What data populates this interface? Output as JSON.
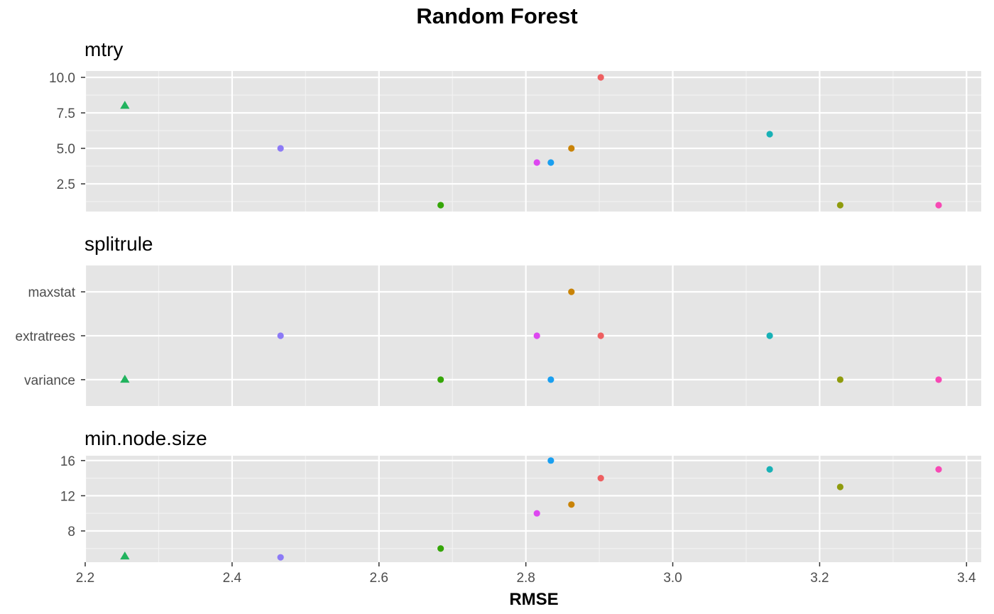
{
  "chart_data": {
    "type": "scatter",
    "title": "Random Forest",
    "xlabel": "RMSE",
    "x_ticks": [
      2.2,
      2.4,
      2.6,
      2.8,
      3.0,
      3.2,
      3.4
    ],
    "x_tick_labels": [
      "2.2",
      "2.4",
      "2.6",
      "2.8",
      "3.0",
      "3.2",
      "3.4"
    ],
    "xlim": [
      2.2,
      3.42
    ],
    "grid": true,
    "best_marker": "triangle",
    "panels": [
      {
        "name": "mtry",
        "y_ticks": [
          2.5,
          5.0,
          7.5,
          10.0
        ],
        "y_tick_labels": [
          "2.5",
          "5.0",
          "7.5",
          "10.0"
        ],
        "ylim": [
          0.55,
          10.45
        ],
        "points": [
          {
            "x": 2.254,
            "y": 8,
            "color": "#21B35E",
            "marker": "triangle"
          },
          {
            "x": 2.466,
            "y": 5,
            "color": "#8C7AF6",
            "marker": "circle"
          },
          {
            "x": 2.684,
            "y": 1,
            "color": "#35A608",
            "marker": "circle"
          },
          {
            "x": 2.815,
            "y": 4,
            "color": "#DD47F0",
            "marker": "circle"
          },
          {
            "x": 2.834,
            "y": 4,
            "color": "#1A9FF0",
            "marker": "circle"
          },
          {
            "x": 2.862,
            "y": 5,
            "color": "#C98307",
            "marker": "circle"
          },
          {
            "x": 2.902,
            "y": 10,
            "color": "#EE5F61",
            "marker": "circle"
          },
          {
            "x": 3.132,
            "y": 6,
            "color": "#18B1B6",
            "marker": "circle"
          },
          {
            "x": 3.228,
            "y": 1,
            "color": "#8F9B0D",
            "marker": "circle"
          },
          {
            "x": 3.362,
            "y": 1,
            "color": "#F749B4",
            "marker": "circle"
          }
        ]
      },
      {
        "name": "splitrule",
        "categories": [
          "variance",
          "extratrees",
          "maxstat"
        ],
        "points": [
          {
            "x": 2.254,
            "y": "variance",
            "color": "#21B35E",
            "marker": "triangle"
          },
          {
            "x": 2.466,
            "y": "extratrees",
            "color": "#8C7AF6",
            "marker": "circle"
          },
          {
            "x": 2.684,
            "y": "variance",
            "color": "#35A608",
            "marker": "circle"
          },
          {
            "x": 2.815,
            "y": "extratrees",
            "color": "#DD47F0",
            "marker": "circle"
          },
          {
            "x": 2.834,
            "y": "variance",
            "color": "#1A9FF0",
            "marker": "circle"
          },
          {
            "x": 2.862,
            "y": "maxstat",
            "color": "#C98307",
            "marker": "circle"
          },
          {
            "x": 2.902,
            "y": "extratrees",
            "color": "#EE5F61",
            "marker": "circle"
          },
          {
            "x": 3.132,
            "y": "extratrees",
            "color": "#18B1B6",
            "marker": "circle"
          },
          {
            "x": 3.228,
            "y": "variance",
            "color": "#8F9B0D",
            "marker": "circle"
          },
          {
            "x": 3.362,
            "y": "variance",
            "color": "#F749B4",
            "marker": "circle"
          }
        ]
      },
      {
        "name": "min.node.size",
        "y_ticks": [
          8,
          12,
          16
        ],
        "y_tick_labels": [
          "8",
          "12",
          "16"
        ],
        "ylim": [
          4.45,
          16.55
        ],
        "points": [
          {
            "x": 2.254,
            "y": 5.1,
            "color": "#21B35E",
            "marker": "triangle"
          },
          {
            "x": 2.466,
            "y": 5,
            "color": "#8C7AF6",
            "marker": "circle"
          },
          {
            "x": 2.684,
            "y": 6,
            "color": "#35A608",
            "marker": "circle"
          },
          {
            "x": 2.815,
            "y": 10,
            "color": "#DD47F0",
            "marker": "circle"
          },
          {
            "x": 2.834,
            "y": 16,
            "color": "#1A9FF0",
            "marker": "circle"
          },
          {
            "x": 2.862,
            "y": 11,
            "color": "#C98307",
            "marker": "circle"
          },
          {
            "x": 2.902,
            "y": 14,
            "color": "#EE5F61",
            "marker": "circle"
          },
          {
            "x": 3.132,
            "y": 15,
            "color": "#18B1B6",
            "marker": "circle"
          },
          {
            "x": 3.228,
            "y": 13,
            "color": "#8F9B0D",
            "marker": "circle"
          },
          {
            "x": 3.362,
            "y": 15,
            "color": "#F749B4",
            "marker": "circle"
          }
        ]
      }
    ]
  }
}
